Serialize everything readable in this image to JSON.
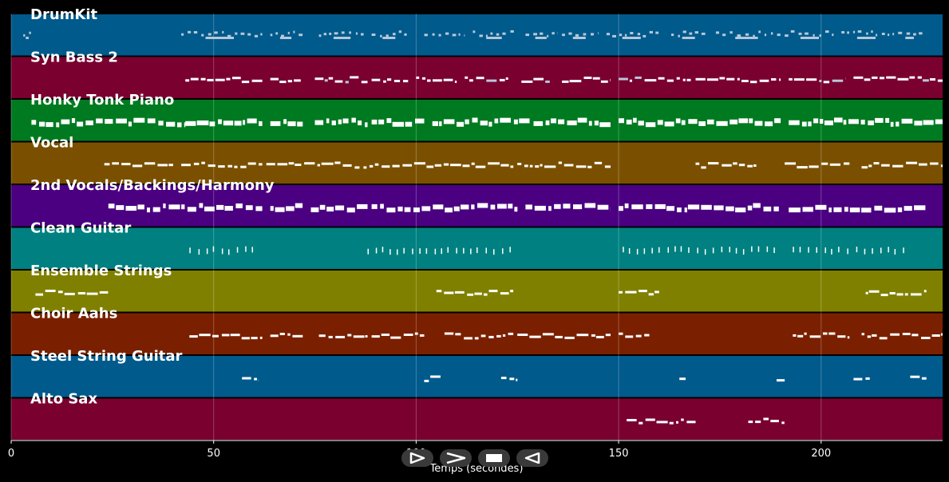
{
  "chart_data": {
    "type": "piano-roll",
    "xlabel": "Temps (secondes)",
    "xlim": [
      0,
      230
    ],
    "xticks": [
      0,
      50,
      100,
      150,
      200
    ],
    "grid": true,
    "tracks": [
      {
        "name": "DrumKit",
        "color": "#005a8c",
        "segments": [
          [
            3,
            5
          ],
          [
            42,
            62
          ],
          [
            64,
            72
          ],
          [
            76,
            88
          ],
          [
            89,
            98
          ],
          [
            102,
            112
          ],
          [
            114,
            125
          ],
          [
            127,
            135
          ],
          [
            136,
            145
          ],
          [
            147,
            160
          ],
          [
            163,
            172
          ],
          [
            174,
            190
          ],
          [
            191,
            204
          ],
          [
            205,
            218
          ],
          [
            219,
            225
          ]
        ]
      },
      {
        "name": "Syn Bass 2",
        "color": "#7a0030",
        "segments": [
          [
            43,
            62
          ],
          [
            64,
            72
          ],
          [
            75,
            88
          ],
          [
            89,
            98
          ],
          [
            100,
            110
          ],
          [
            112,
            123
          ],
          [
            126,
            133
          ],
          [
            136,
            148
          ],
          [
            150,
            168
          ],
          [
            169,
            190
          ],
          [
            192,
            206
          ],
          [
            208,
            230
          ]
        ]
      },
      {
        "name": "Honky Tonk Piano",
        "color": "#007a20",
        "segments": [
          [
            5,
            43
          ],
          [
            43,
            62
          ],
          [
            64,
            72
          ],
          [
            75,
            88
          ],
          [
            89,
            102
          ],
          [
            104,
            128
          ],
          [
            129,
            148
          ],
          [
            150,
            190
          ],
          [
            192,
            230
          ]
        ]
      },
      {
        "name": "Vocal",
        "color": "#7a5000",
        "segments": [
          [
            23,
            40
          ],
          [
            42,
            62
          ],
          [
            63,
            86
          ],
          [
            87,
            124
          ],
          [
            125,
            148
          ],
          [
            169,
            184
          ],
          [
            191,
            207
          ],
          [
            210,
            230
          ]
        ]
      },
      {
        "name": "2nd Vocals/Backings/Harmony",
        "color": "#4b0082",
        "segments": [
          [
            24,
            62
          ],
          [
            64,
            72
          ],
          [
            74,
            88
          ],
          [
            89,
            125
          ],
          [
            127,
            148
          ],
          [
            150,
            190
          ],
          [
            192,
            226
          ]
        ]
      },
      {
        "name": "Clean Guitar",
        "color": "#008080",
        "segments": [
          [
            44,
            61
          ],
          [
            88,
            124
          ],
          [
            151,
            190
          ],
          [
            193,
            222
          ]
        ]
      },
      {
        "name": "Ensemble Strings",
        "color": "#808000",
        "segments": [
          [
            6,
            24
          ],
          [
            105,
            124
          ],
          [
            150,
            160
          ],
          [
            211,
            226
          ]
        ]
      },
      {
        "name": "Choir Aahs",
        "color": "#7a2000",
        "segments": [
          [
            44,
            62
          ],
          [
            64,
            72
          ],
          [
            76,
            88
          ],
          [
            89,
            102
          ],
          [
            107,
            124
          ],
          [
            125,
            148
          ],
          [
            150,
            158
          ],
          [
            193,
            207
          ],
          [
            210,
            230
          ]
        ]
      },
      {
        "name": "Steel String Guitar",
        "color": "#005a8c",
        "segments": [
          [
            57,
            61
          ],
          [
            102,
            106
          ],
          [
            121,
            125
          ],
          [
            165,
            167
          ],
          [
            189,
            191
          ],
          [
            208,
            212
          ],
          [
            222,
            226
          ]
        ]
      },
      {
        "name": "Alto Sax",
        "color": "#7a0030",
        "segments": [
          [
            152,
            169
          ],
          [
            182,
            191
          ]
        ]
      }
    ]
  },
  "controls": [
    {
      "icon": "play-icon"
    },
    {
      "icon": "fast-forward-icon"
    },
    {
      "icon": "stop-icon"
    },
    {
      "icon": "rewind-icon"
    }
  ]
}
